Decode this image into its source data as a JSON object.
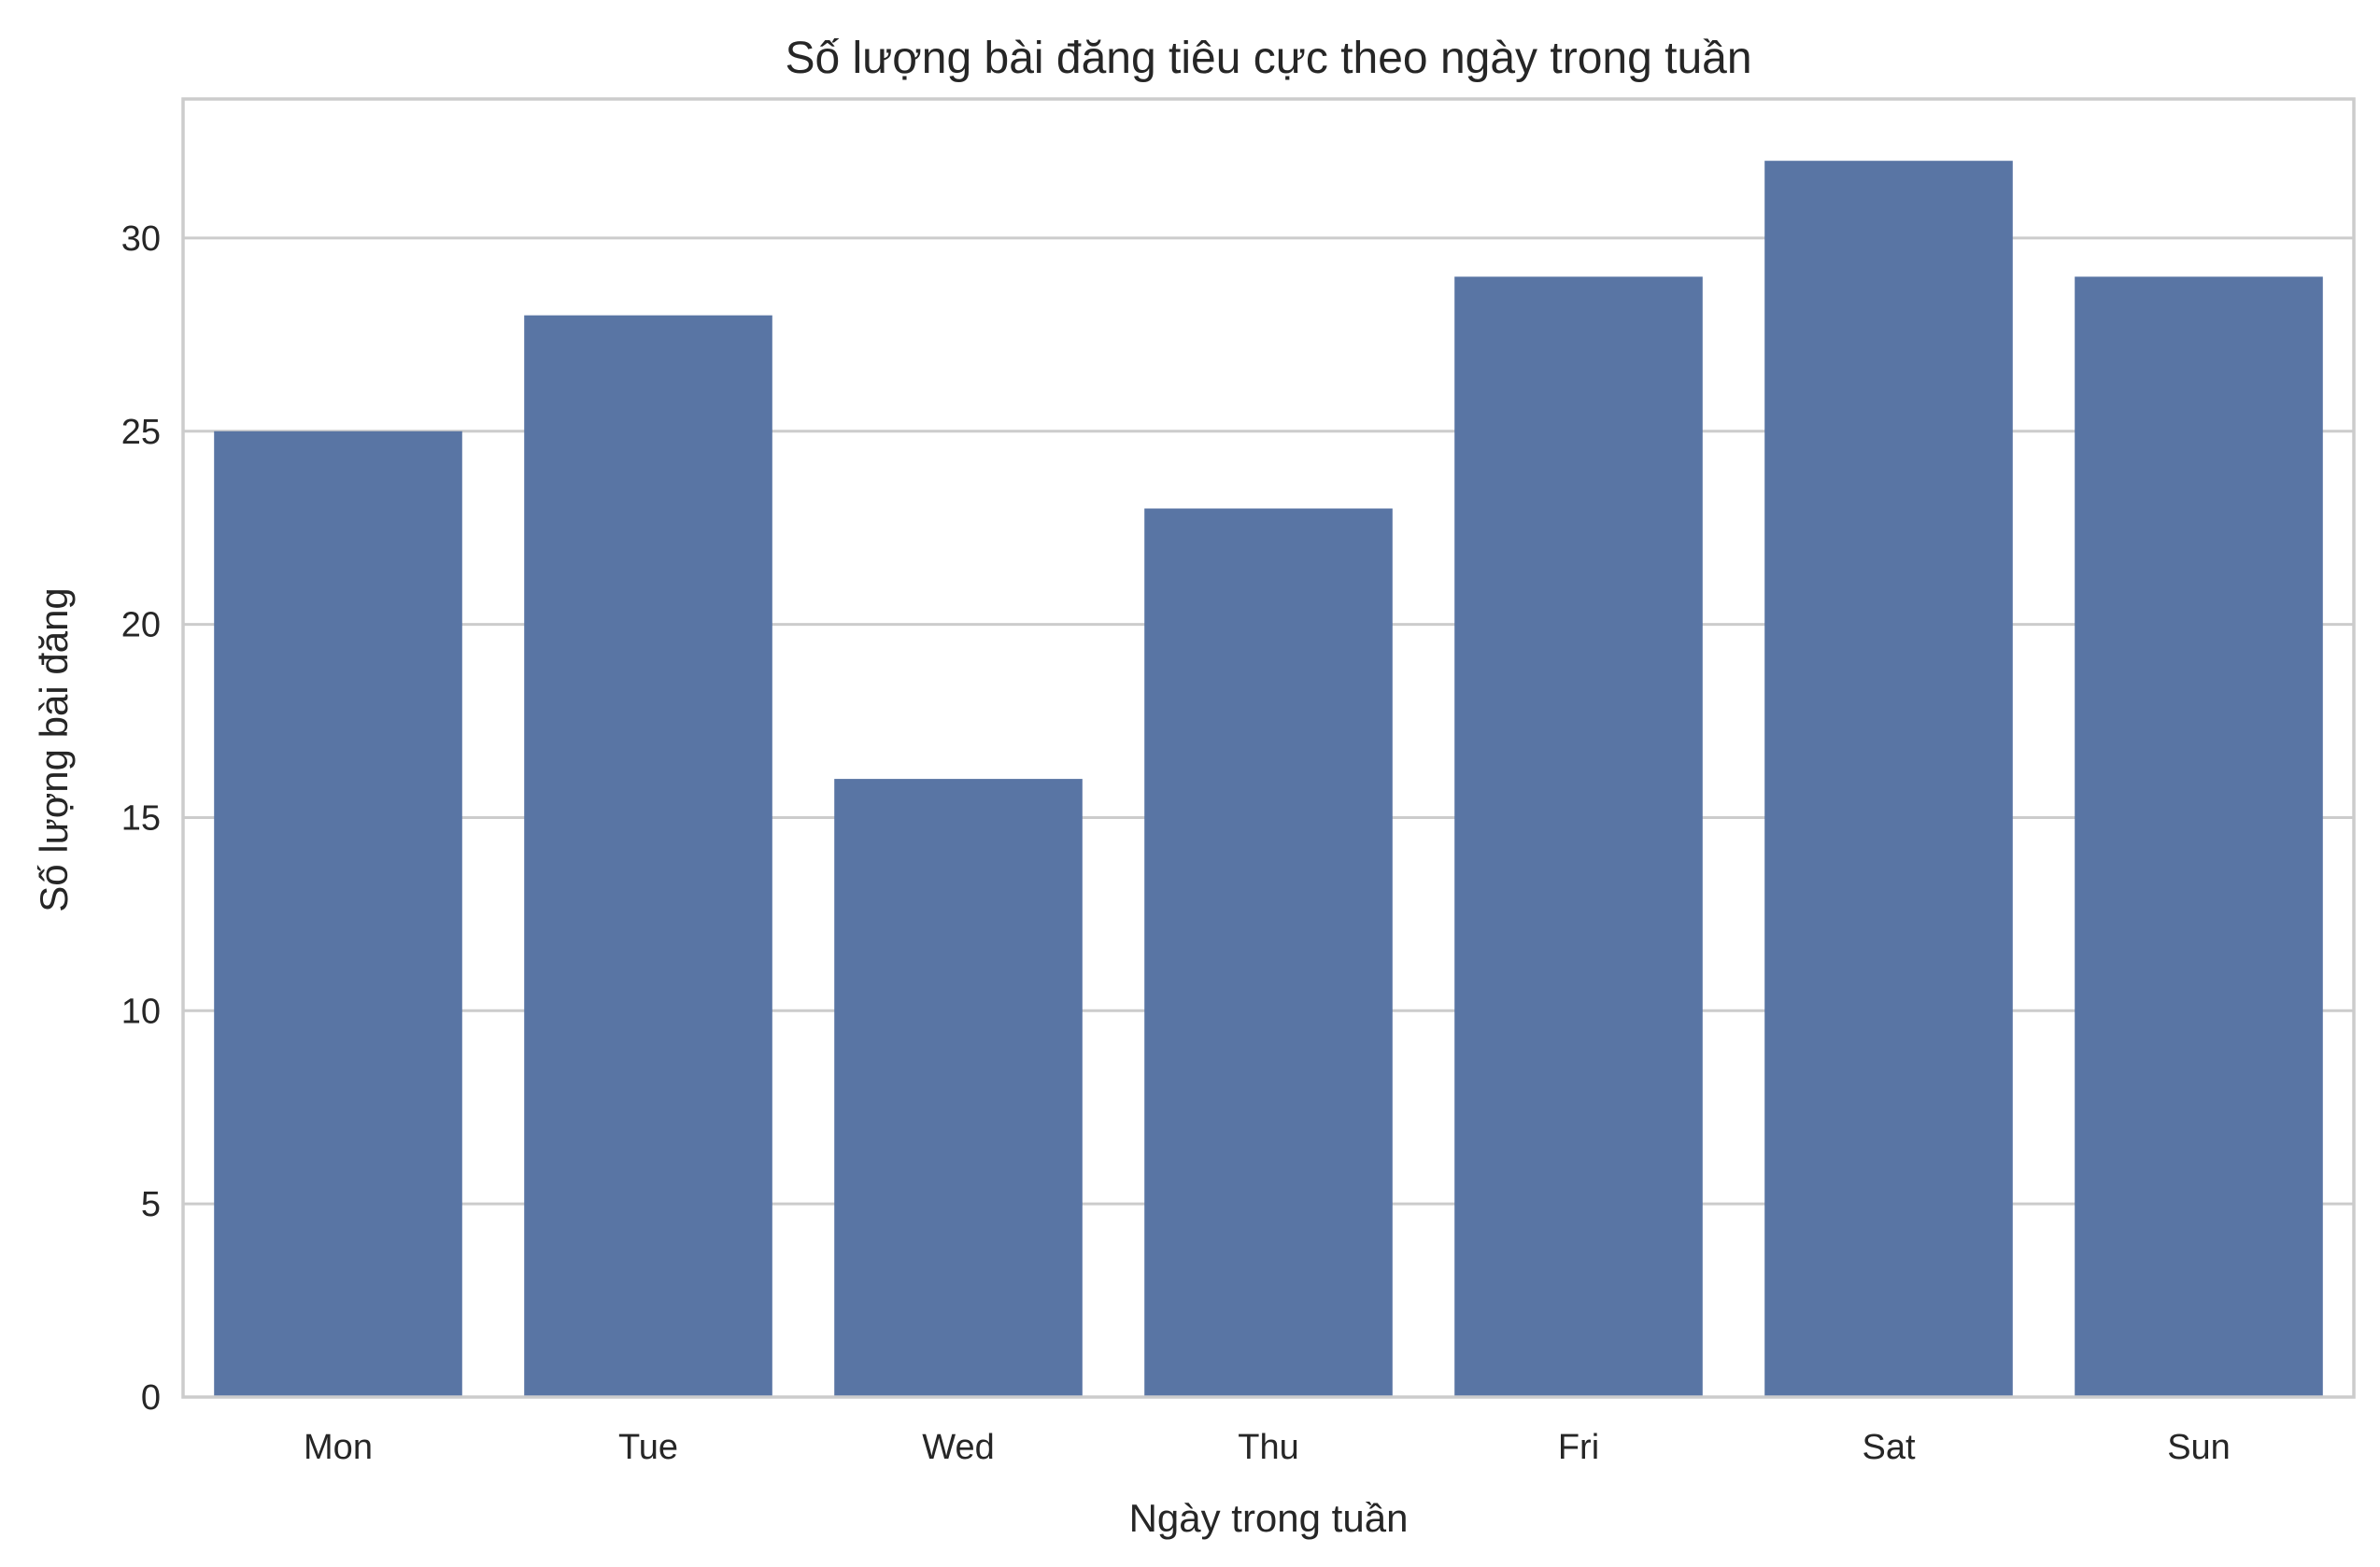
{
  "chart_data": {
    "type": "bar",
    "title": "Số lượng bài đăng tiêu cực theo ngày trong tuần",
    "xlabel": "Ngày trong tuần",
    "ylabel": "Số lượng bài đăng",
    "categories": [
      "Mon",
      "Tue",
      "Wed",
      "Thu",
      "Fri",
      "Sat",
      "Sun"
    ],
    "values": [
      25,
      28,
      16,
      23,
      29,
      32,
      29
    ],
    "ylim": [
      0,
      33.6
    ],
    "yticks": [
      0,
      5,
      10,
      15,
      20,
      25,
      30
    ],
    "grid": "horizontal",
    "bar_color": "#5975a4",
    "grid_color": "#cccccc"
  }
}
